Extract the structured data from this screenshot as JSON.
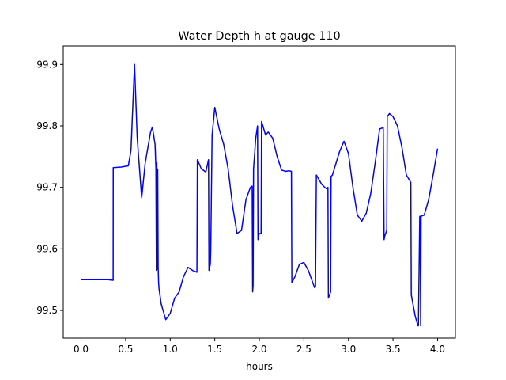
{
  "chart_data": {
    "type": "line",
    "title": "Water Depth h at gauge 110",
    "xlabel": "hours",
    "ylabel": "",
    "xlim": [
      -0.2,
      4.2
    ],
    "ylim": [
      99.455,
      99.93
    ],
    "xticks": [
      {
        "value": 0.0,
        "label": "0.0"
      },
      {
        "value": 0.5,
        "label": "0.5"
      },
      {
        "value": 1.0,
        "label": "1.0"
      },
      {
        "value": 1.5,
        "label": "1.5"
      },
      {
        "value": 2.0,
        "label": "2.0"
      },
      {
        "value": 2.5,
        "label": "2.5"
      },
      {
        "value": 3.0,
        "label": "3.0"
      },
      {
        "value": 3.5,
        "label": "3.5"
      },
      {
        "value": 4.0,
        "label": "4.0"
      }
    ],
    "yticks": [
      {
        "value": 99.5,
        "label": "99.5"
      },
      {
        "value": 99.6,
        "label": "99.6"
      },
      {
        "value": 99.7,
        "label": "99.7"
      },
      {
        "value": 99.8,
        "label": "99.8"
      },
      {
        "value": 99.9,
        "label": "99.9"
      }
    ],
    "grid": false,
    "line_color": "#0000ff",
    "series": [
      {
        "x": [
          0.0,
          0.1,
          0.2,
          0.3,
          0.36,
          0.361,
          0.45,
          0.53,
          0.56,
          0.6,
          0.63,
          0.68,
          0.72,
          0.78,
          0.8,
          0.83,
          0.84,
          0.845,
          0.85,
          0.855,
          0.86,
          0.865,
          0.87,
          0.875,
          0.9,
          0.95,
          1.0,
          1.05,
          1.1,
          1.15,
          1.2,
          1.25,
          1.3,
          1.305,
          1.35,
          1.4,
          1.43,
          1.435,
          1.45,
          1.455,
          1.47,
          1.5,
          1.55,
          1.6,
          1.65,
          1.7,
          1.75,
          1.8,
          1.85,
          1.9,
          1.92,
          1.925,
          1.93,
          1.935,
          1.96,
          1.98,
          1.985,
          1.99,
          2.0,
          2.02,
          2.025,
          2.04,
          2.07,
          2.1,
          2.15,
          2.2,
          2.25,
          2.3,
          2.33,
          2.36,
          2.365,
          2.4,
          2.45,
          2.5,
          2.55,
          2.6,
          2.62,
          2.63,
          2.64,
          2.7,
          2.75,
          2.77,
          2.775,
          2.8,
          2.805,
          2.82,
          2.9,
          2.95,
          3.0,
          3.05,
          3.1,
          3.15,
          3.2,
          3.25,
          3.3,
          3.35,
          3.39,
          3.4,
          3.405,
          3.43,
          3.435,
          3.46,
          3.5,
          3.55,
          3.6,
          3.65,
          3.7,
          3.705,
          3.75,
          3.78,
          3.785,
          3.8,
          3.805,
          3.81,
          3.815,
          3.85,
          3.9,
          3.95,
          4.0
        ],
        "y": [
          99.55,
          99.55,
          99.55,
          99.55,
          99.549,
          99.732,
          99.733,
          99.735,
          99.76,
          99.9,
          99.78,
          99.683,
          99.74,
          99.79,
          99.798,
          99.77,
          99.73,
          99.565,
          99.74,
          99.567,
          99.73,
          99.57,
          99.545,
          99.535,
          99.51,
          99.485,
          99.495,
          99.52,
          99.53,
          99.555,
          99.57,
          99.565,
          99.562,
          99.745,
          99.73,
          99.725,
          99.745,
          99.565,
          99.575,
          99.598,
          99.785,
          99.83,
          99.795,
          99.77,
          99.73,
          99.67,
          99.625,
          99.63,
          99.68,
          99.7,
          99.702,
          99.53,
          99.54,
          99.73,
          99.78,
          99.8,
          99.615,
          99.62,
          99.625,
          99.625,
          99.807,
          99.8,
          99.785,
          99.79,
          99.78,
          99.75,
          99.728,
          99.726,
          99.727,
          99.726,
          99.545,
          99.555,
          99.575,
          99.578,
          99.565,
          99.545,
          99.537,
          99.538,
          99.72,
          99.705,
          99.698,
          99.7,
          99.52,
          99.53,
          99.718,
          99.72,
          99.758,
          99.775,
          99.755,
          99.7,
          99.655,
          99.645,
          99.658,
          99.69,
          99.74,
          99.795,
          99.797,
          99.615,
          99.62,
          99.63,
          99.815,
          99.82,
          99.815,
          99.8,
          99.765,
          99.72,
          99.708,
          99.525,
          99.49,
          99.475,
          99.475,
          99.653,
          99.653,
          99.475,
          99.653,
          99.655,
          99.68,
          99.72,
          99.763
        ]
      }
    ]
  }
}
